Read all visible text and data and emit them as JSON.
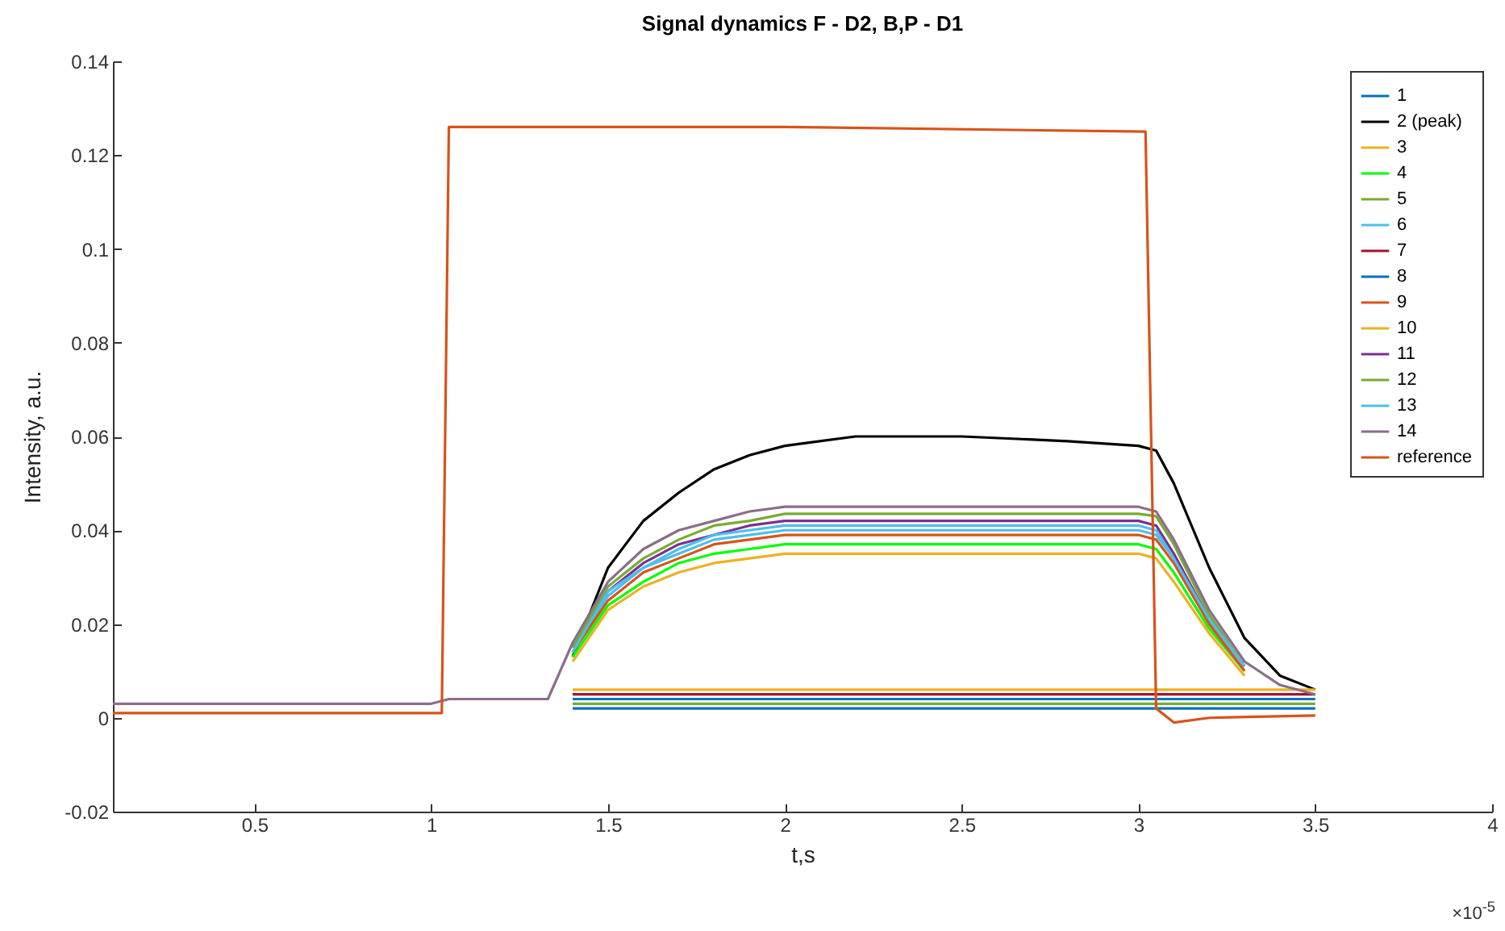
{
  "chart_data": {
    "type": "line",
    "title": "Signal dynamics F - D2, B,P - D1",
    "xlabel": "t,s",
    "ylabel": "Intensity, a.u.",
    "annotations": [
      "×10$^{-5}$"
    ],
    "x": [
      0.1,
      1.0,
      1.05,
      1.33,
      1.4,
      1.5,
      1.6,
      1.7,
      1.8,
      1.9,
      2.0,
      2.2,
      2.5,
      2.8,
      3.0,
      3.05,
      3.1,
      3.2,
      3.3,
      3.4,
      3.5
    ],
    "xlim": [
      0.1,
      4
    ],
    "xticks": [
      0.5,
      1,
      1.5,
      2,
      2.5,
      3,
      3.5,
      4
    ],
    "ylim": [
      -0.02,
      0.14
    ],
    "yticks": [
      -0.02,
      0,
      0.02,
      0.04,
      0.06,
      0.08,
      0.1,
      0.12,
      0.14
    ],
    "grid": false,
    "legend": "top right",
    "series": [
      {
        "name": "1",
        "color": "#0072bd",
        "values": [
          null,
          null,
          null,
          null,
          0.004,
          0.004,
          0.004,
          0.004,
          0.004,
          0.004,
          0.004,
          0.004,
          0.004,
          0.004,
          0.004,
          0.004,
          0.004,
          0.004,
          0.004,
          0.004,
          0.004
        ]
      },
      {
        "name": "2 (peak)",
        "color": "#000000",
        "values": [
          null,
          null,
          null,
          null,
          0.013,
          0.032,
          0.042,
          0.048,
          0.053,
          0.056,
          0.058,
          0.06,
          0.06,
          0.059,
          0.058,
          0.057,
          0.05,
          0.032,
          0.017,
          0.009,
          0.006
        ]
      },
      {
        "name": "3",
        "color": "#edb120",
        "values": [
          null,
          null,
          null,
          null,
          0.012,
          0.023,
          0.028,
          0.031,
          0.033,
          0.034,
          0.035,
          0.035,
          0.035,
          0.035,
          0.035,
          0.034,
          0.029,
          0.018,
          0.009,
          null,
          null
        ]
      },
      {
        "name": "4",
        "color": "#00ff00",
        "values": [
          null,
          null,
          null,
          null,
          0.013,
          0.024,
          0.029,
          0.033,
          0.035,
          0.036,
          0.037,
          0.037,
          0.037,
          0.037,
          0.037,
          0.036,
          0.031,
          0.019,
          0.01,
          null,
          null
        ]
      },
      {
        "name": "5",
        "color": "#77ac30",
        "values": [
          null,
          null,
          null,
          null,
          0.003,
          0.003,
          0.003,
          0.003,
          0.003,
          0.003,
          0.003,
          0.003,
          0.003,
          0.003,
          0.003,
          0.003,
          0.003,
          0.003,
          0.003,
          0.003,
          0.003
        ]
      },
      {
        "name": "6",
        "color": "#4dbeee",
        "values": [
          null,
          null,
          null,
          null,
          0.014,
          0.026,
          0.032,
          0.035,
          0.038,
          0.039,
          0.04,
          0.04,
          0.04,
          0.04,
          0.04,
          0.039,
          0.034,
          0.02,
          0.01,
          null,
          null
        ]
      },
      {
        "name": "7",
        "color": "#a2142f",
        "values": [
          null,
          null,
          null,
          null,
          0.005,
          0.005,
          0.005,
          0.005,
          0.005,
          0.005,
          0.005,
          0.005,
          0.005,
          0.005,
          0.005,
          0.005,
          0.005,
          0.005,
          0.005,
          0.005,
          0.005
        ]
      },
      {
        "name": "8",
        "color": "#0072bd",
        "values": [
          null,
          null,
          null,
          null,
          0.002,
          0.002,
          0.002,
          0.002,
          0.002,
          0.002,
          0.002,
          0.002,
          0.002,
          0.002,
          0.002,
          0.002,
          0.002,
          0.002,
          0.002,
          0.002,
          0.002
        ]
      },
      {
        "name": "9",
        "color": "#d95319",
        "values": [
          null,
          null,
          null,
          null,
          0.014,
          0.025,
          0.031,
          0.034,
          0.037,
          0.038,
          0.039,
          0.039,
          0.039,
          0.039,
          0.039,
          0.038,
          0.033,
          0.02,
          0.01,
          null,
          null
        ]
      },
      {
        "name": "10",
        "color": "#edb120",
        "values": [
          null,
          null,
          null,
          null,
          0.006,
          0.006,
          0.006,
          0.006,
          0.006,
          0.006,
          0.006,
          0.006,
          0.006,
          0.006,
          0.006,
          0.006,
          0.006,
          0.006,
          0.006,
          0.006,
          0.006
        ]
      },
      {
        "name": "11",
        "color": "#7e2f8e",
        "values": [
          null,
          null,
          null,
          null,
          0.015,
          0.027,
          0.033,
          0.037,
          0.039,
          0.041,
          0.042,
          0.042,
          0.042,
          0.042,
          0.042,
          0.041,
          0.035,
          0.021,
          0.011,
          null,
          null
        ]
      },
      {
        "name": "12",
        "color": "#77ac30",
        "values": [
          null,
          null,
          null,
          null,
          0.015,
          0.028,
          0.034,
          0.038,
          0.041,
          0.042,
          0.0435,
          0.0435,
          0.0435,
          0.0435,
          0.0435,
          0.043,
          0.037,
          0.022,
          0.011,
          null,
          null
        ]
      },
      {
        "name": "13",
        "color": "#4dbeee",
        "values": [
          null,
          null,
          null,
          null,
          0.014,
          0.027,
          0.032,
          0.036,
          0.039,
          0.04,
          0.041,
          0.041,
          0.041,
          0.041,
          0.041,
          0.04,
          0.034,
          0.021,
          0.011,
          null,
          null
        ]
      },
      {
        "name": "14",
        "color": "#8c6d8c",
        "values": [
          0.003,
          0.003,
          0.004,
          0.004,
          0.016,
          0.029,
          0.036,
          0.04,
          0.042,
          0.044,
          0.045,
          0.045,
          0.045,
          0.045,
          0.045,
          0.044,
          0.038,
          0.023,
          0.012,
          0.007,
          0.005
        ]
      },
      {
        "name": "reference",
        "color": "#d95319",
        "x": [
          0.1,
          1.03,
          1.05,
          1.1,
          2.0,
          3.02,
          3.05,
          3.1,
          3.2,
          3.5
        ],
        "values": [
          0.001,
          0.001,
          0.126,
          0.126,
          0.126,
          0.125,
          0.002,
          -0.001,
          0,
          0.0005
        ]
      }
    ]
  }
}
